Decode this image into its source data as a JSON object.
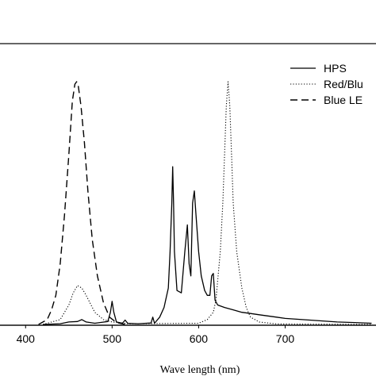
{
  "chart_data": {
    "type": "line",
    "title": "",
    "xlabel": "Wave length (nm)",
    "ylabel": "",
    "xlim": [
      375,
      805
    ],
    "ylim": [
      0,
      1.0
    ],
    "xticks": [
      400,
      500,
      600,
      700
    ],
    "grid": false,
    "legend_position": "top-right",
    "series": [
      {
        "name": "HPS",
        "style": "solid",
        "color": "#000000",
        "points": [
          [
            420,
            0.0
          ],
          [
            440,
            0.003
          ],
          [
            450,
            0.01
          ],
          [
            460,
            0.012
          ],
          [
            465,
            0.02
          ],
          [
            470,
            0.01
          ],
          [
            480,
            0.005
          ],
          [
            495,
            0.012
          ],
          [
            498,
            0.05
          ],
          [
            500,
            0.095
          ],
          [
            502,
            0.05
          ],
          [
            505,
            0.01
          ],
          [
            512,
            0.005
          ],
          [
            515,
            0.018
          ],
          [
            518,
            0.005
          ],
          [
            530,
            0.003
          ],
          [
            545,
            0.006
          ],
          [
            547,
            0.03
          ],
          [
            549,
            0.005
          ],
          [
            555,
            0.03
          ],
          [
            560,
            0.07
          ],
          [
            565,
            0.15
          ],
          [
            567,
            0.3
          ],
          [
            569,
            0.5
          ],
          [
            570,
            0.65
          ],
          [
            571,
            0.5
          ],
          [
            572,
            0.3
          ],
          [
            575,
            0.14
          ],
          [
            580,
            0.13
          ],
          [
            584,
            0.3
          ],
          [
            587,
            0.41
          ],
          [
            589,
            0.25
          ],
          [
            591,
            0.2
          ],
          [
            593,
            0.5
          ],
          [
            595,
            0.55
          ],
          [
            597,
            0.45
          ],
          [
            600,
            0.3
          ],
          [
            603,
            0.2
          ],
          [
            607,
            0.14
          ],
          [
            610,
            0.12
          ],
          [
            613,
            0.12
          ],
          [
            615,
            0.2
          ],
          [
            617,
            0.21
          ],
          [
            619,
            0.1
          ],
          [
            622,
            0.08
          ],
          [
            630,
            0.07
          ],
          [
            640,
            0.06
          ],
          [
            650,
            0.05
          ],
          [
            660,
            0.045
          ],
          [
            670,
            0.04
          ],
          [
            680,
            0.035
          ],
          [
            690,
            0.03
          ],
          [
            700,
            0.025
          ],
          [
            720,
            0.02
          ],
          [
            740,
            0.015
          ],
          [
            760,
            0.01
          ],
          [
            780,
            0.008
          ],
          [
            800,
            0.005
          ]
        ]
      },
      {
        "name": "Red/Blu",
        "style": "dotted",
        "color": "#000000",
        "points": [
          [
            420,
            0.0
          ],
          [
            440,
            0.02
          ],
          [
            450,
            0.08
          ],
          [
            455,
            0.13
          ],
          [
            460,
            0.16
          ],
          [
            465,
            0.15
          ],
          [
            470,
            0.12
          ],
          [
            480,
            0.05
          ],
          [
            490,
            0.02
          ],
          [
            500,
            0.01
          ],
          [
            520,
            0.003
          ],
          [
            600,
            0.005
          ],
          [
            610,
            0.02
          ],
          [
            617,
            0.05
          ],
          [
            620,
            0.1
          ],
          [
            625,
            0.3
          ],
          [
            628,
            0.5
          ],
          [
            630,
            0.7
          ],
          [
            632,
            0.9
          ],
          [
            634,
            1.0
          ],
          [
            636,
            0.9
          ],
          [
            638,
            0.7
          ],
          [
            640,
            0.5
          ],
          [
            644,
            0.3
          ],
          [
            650,
            0.15
          ],
          [
            655,
            0.07
          ],
          [
            660,
            0.03
          ],
          [
            670,
            0.01
          ],
          [
            690,
            0.002
          ],
          [
            800,
            0.0
          ]
        ]
      },
      {
        "name": "Blue LE",
        "style": "dashed",
        "color": "#000000",
        "points": [
          [
            415,
            0.0
          ],
          [
            425,
            0.02
          ],
          [
            430,
            0.06
          ],
          [
            435,
            0.12
          ],
          [
            440,
            0.25
          ],
          [
            445,
            0.45
          ],
          [
            450,
            0.7
          ],
          [
            454,
            0.92
          ],
          [
            457,
            0.99
          ],
          [
            459,
            1.0
          ],
          [
            461,
            0.98
          ],
          [
            464,
            0.9
          ],
          [
            468,
            0.75
          ],
          [
            472,
            0.55
          ],
          [
            477,
            0.35
          ],
          [
            483,
            0.2
          ],
          [
            490,
            0.09
          ],
          [
            497,
            0.03
          ],
          [
            505,
            0.008
          ],
          [
            515,
            0.0
          ]
        ]
      }
    ]
  }
}
